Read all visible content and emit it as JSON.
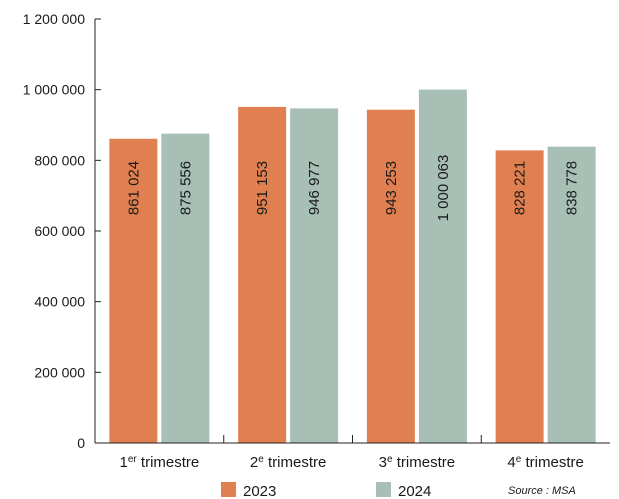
{
  "chart_data": {
    "type": "bar",
    "categories": [
      {
        "base": "1",
        "sup": "er",
        "rest": " trimestre"
      },
      {
        "base": "2",
        "sup": "e",
        "rest": " trimestre"
      },
      {
        "base": "3",
        "sup": "e",
        "rest": " trimestre"
      },
      {
        "base": "4",
        "sup": "e",
        "rest": " trimestre"
      }
    ],
    "series": [
      {
        "name": "2023",
        "color": "#E08050",
        "values": [
          861024,
          951153,
          943253,
          828221
        ],
        "labels": [
          "861 024",
          "951 153",
          "943 253",
          "828 221"
        ]
      },
      {
        "name": "2024",
        "color": "#A8BFB5",
        "values": [
          875556,
          946977,
          1000063,
          838778
        ],
        "labels": [
          "875 556",
          "946 977",
          "1 000 063",
          "838 778"
        ]
      }
    ],
    "ylim": [
      0,
      1200000
    ],
    "yticks": [
      0,
      200000,
      400000,
      600000,
      800000,
      1000000,
      1200000
    ],
    "ytick_labels": [
      "0",
      "200 000",
      "400 000",
      "600 000",
      "800 000",
      "1 000 000",
      "1 200 000"
    ],
    "grid": false,
    "legend_position": "bottom",
    "source": "Source : MSA"
  }
}
